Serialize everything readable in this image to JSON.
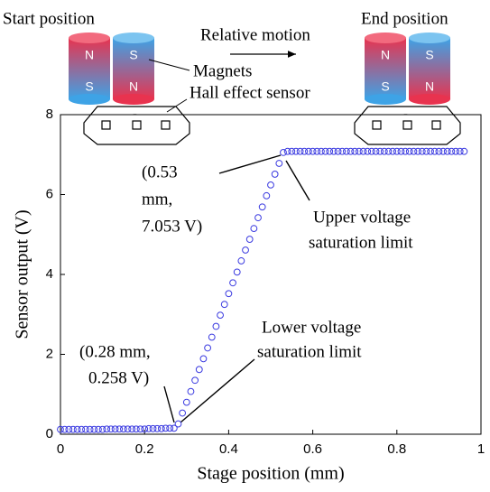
{
  "chart_data": {
    "type": "scatter",
    "xlabel": "Stage position (mm)",
    "ylabel": "Sensor output (V)",
    "xlim": [
      0,
      1
    ],
    "xticks": [
      0,
      0.2,
      0.4,
      0.6,
      0.8,
      1
    ],
    "ylim": [
      0,
      8
    ],
    "yticks": [
      0,
      2,
      4,
      6,
      8
    ],
    "color": "#3b3be0",
    "x": [
      0,
      0.01,
      0.02,
      0.03,
      0.04,
      0.05,
      0.06,
      0.07,
      0.08,
      0.09,
      0.1,
      0.11,
      0.12,
      0.13,
      0.14,
      0.15,
      0.16,
      0.17,
      0.18,
      0.19,
      0.2,
      0.21,
      0.22,
      0.23,
      0.24,
      0.25,
      0.26,
      0.27,
      0.28,
      0.29,
      0.3,
      0.31,
      0.32,
      0.33,
      0.34,
      0.35,
      0.36,
      0.37,
      0.38,
      0.39,
      0.4,
      0.41,
      0.42,
      0.43,
      0.44,
      0.45,
      0.46,
      0.47,
      0.48,
      0.49,
      0.5,
      0.51,
      0.52,
      0.53,
      0.54,
      0.55,
      0.56,
      0.57,
      0.58,
      0.59,
      0.6,
      0.61,
      0.62,
      0.63,
      0.64,
      0.65,
      0.66,
      0.67,
      0.68,
      0.69,
      0.7,
      0.71,
      0.72,
      0.73,
      0.74,
      0.75,
      0.76,
      0.77,
      0.78,
      0.79,
      0.8,
      0.81,
      0.82,
      0.83,
      0.84,
      0.85,
      0.86,
      0.87,
      0.88,
      0.89,
      0.9,
      0.91,
      0.92,
      0.93,
      0.94,
      0.95,
      0.96
    ],
    "values": [
      0.12,
      0.12,
      0.12,
      0.12,
      0.12,
      0.12,
      0.12,
      0.12,
      0.12,
      0.12,
      0.12,
      0.13,
      0.13,
      0.13,
      0.13,
      0.13,
      0.13,
      0.13,
      0.13,
      0.13,
      0.13,
      0.14,
      0.14,
      0.14,
      0.14,
      0.15,
      0.15,
      0.15,
      0.258,
      0.53,
      0.8,
      1.07,
      1.35,
      1.62,
      1.89,
      2.16,
      2.43,
      2.7,
      2.98,
      3.25,
      3.52,
      3.79,
      4.06,
      4.34,
      4.61,
      4.88,
      5.15,
      5.42,
      5.69,
      5.97,
      6.24,
      6.51,
      6.78,
      7.053,
      7.08,
      7.08,
      7.08,
      7.08,
      7.08,
      7.08,
      7.08,
      7.08,
      7.08,
      7.08,
      7.08,
      7.08,
      7.08,
      7.08,
      7.08,
      7.08,
      7.08,
      7.08,
      7.08,
      7.08,
      7.08,
      7.08,
      7.08,
      7.08,
      7.08,
      7.08,
      7.08,
      7.08,
      7.08,
      7.08,
      7.08,
      7.08,
      7.08,
      7.08,
      7.08,
      7.08,
      7.08,
      7.08,
      7.08,
      7.08,
      7.08,
      7.08,
      7.08
    ],
    "annotations": [
      {
        "lines": [
          "(0.53",
          "mm,",
          "7.053 V)"
        ]
      },
      {
        "lines": [
          "Upper voltage",
          "saturation limit"
        ]
      },
      {
        "lines": [
          "Lower voltage",
          "saturation limit"
        ]
      },
      {
        "lines": [
          "(0.28 mm,",
          "0.258 V)"
        ]
      }
    ]
  },
  "diagram": {
    "start": "Start position",
    "end": "End position",
    "motion": "Relative motion",
    "magnets": "Magnets",
    "sensor": "Hall effect sensor",
    "start_poles": [
      "N",
      "S",
      "S",
      "N"
    ],
    "end_poles": [
      "N",
      "S",
      "S",
      "N"
    ],
    "sensor_mark": "-"
  }
}
